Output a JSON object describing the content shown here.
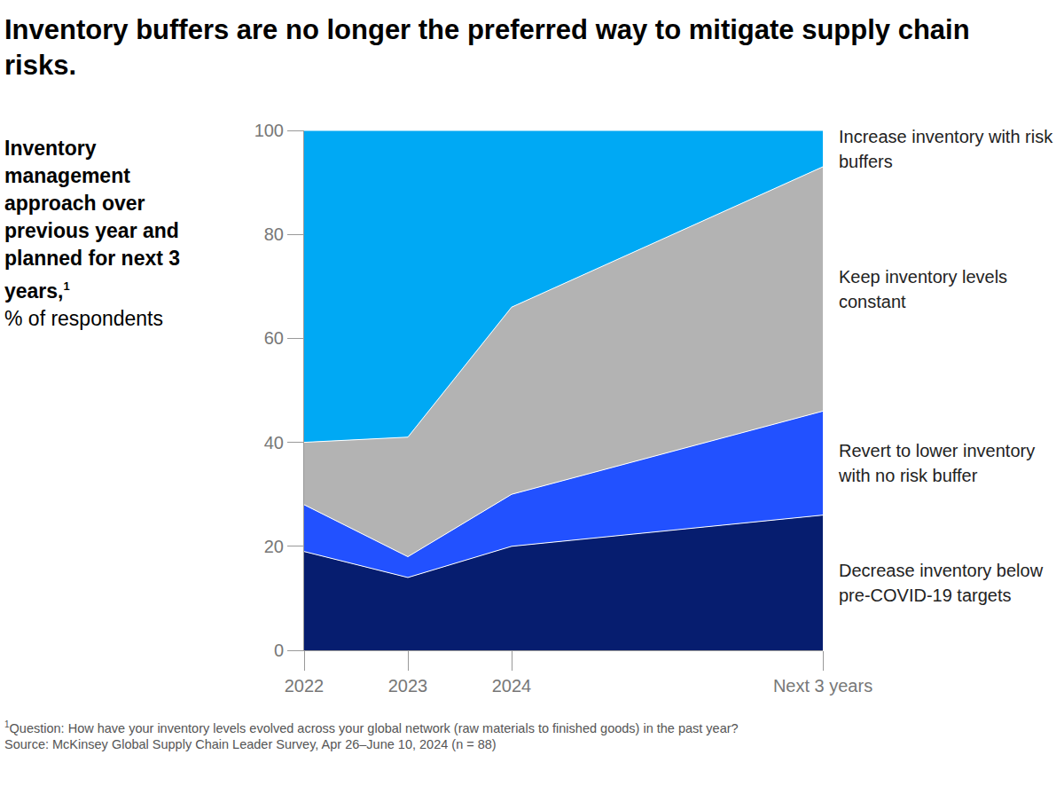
{
  "chart_data": {
    "type": "area",
    "stacked": true,
    "title": "Inventory buffers are no longer the preferred way to mitigate supply chain risks.",
    "y_label": "Inventory management approach over previous year and planned for next 3 years,",
    "y_label_marker": "1",
    "y_unit": "% of respondents",
    "footnote": "Question: How have your inventory levels evolved across your global network (raw materials to finished goods) in the past year?",
    "source": "Source: McKinsey Global Supply Chain Leader Survey, Apr 26–June 10, 2024 (n = 88)",
    "x": [
      2022,
      2023,
      2024,
      2027
    ],
    "xlim": [
      2022,
      2027
    ],
    "xticks": [
      2022,
      2023,
      2024,
      {
        "value": 2027,
        "label": "Next 3 years"
      }
    ],
    "ylim": [
      0,
      100
    ],
    "yticks": [
      0,
      20,
      40,
      60,
      80,
      100
    ],
    "grid": false,
    "series": [
      {
        "name": "Decrease inventory below pre-COVID-19 targets",
        "color": "#061d6f",
        "values": [
          19,
          14,
          20,
          26
        ]
      },
      {
        "name": "Revert to lower inventory with no risk buffer",
        "color": "#2251ff",
        "values": [
          9,
          4,
          10,
          20
        ]
      },
      {
        "name": "Keep inventory levels constant",
        "color": "#b3b3b3",
        "values": [
          12,
          23,
          36,
          47
        ]
      },
      {
        "name": "Increase inventory with risk buffers",
        "color": "#00a9f4",
        "values": [
          60,
          59,
          34,
          7
        ]
      }
    ]
  }
}
